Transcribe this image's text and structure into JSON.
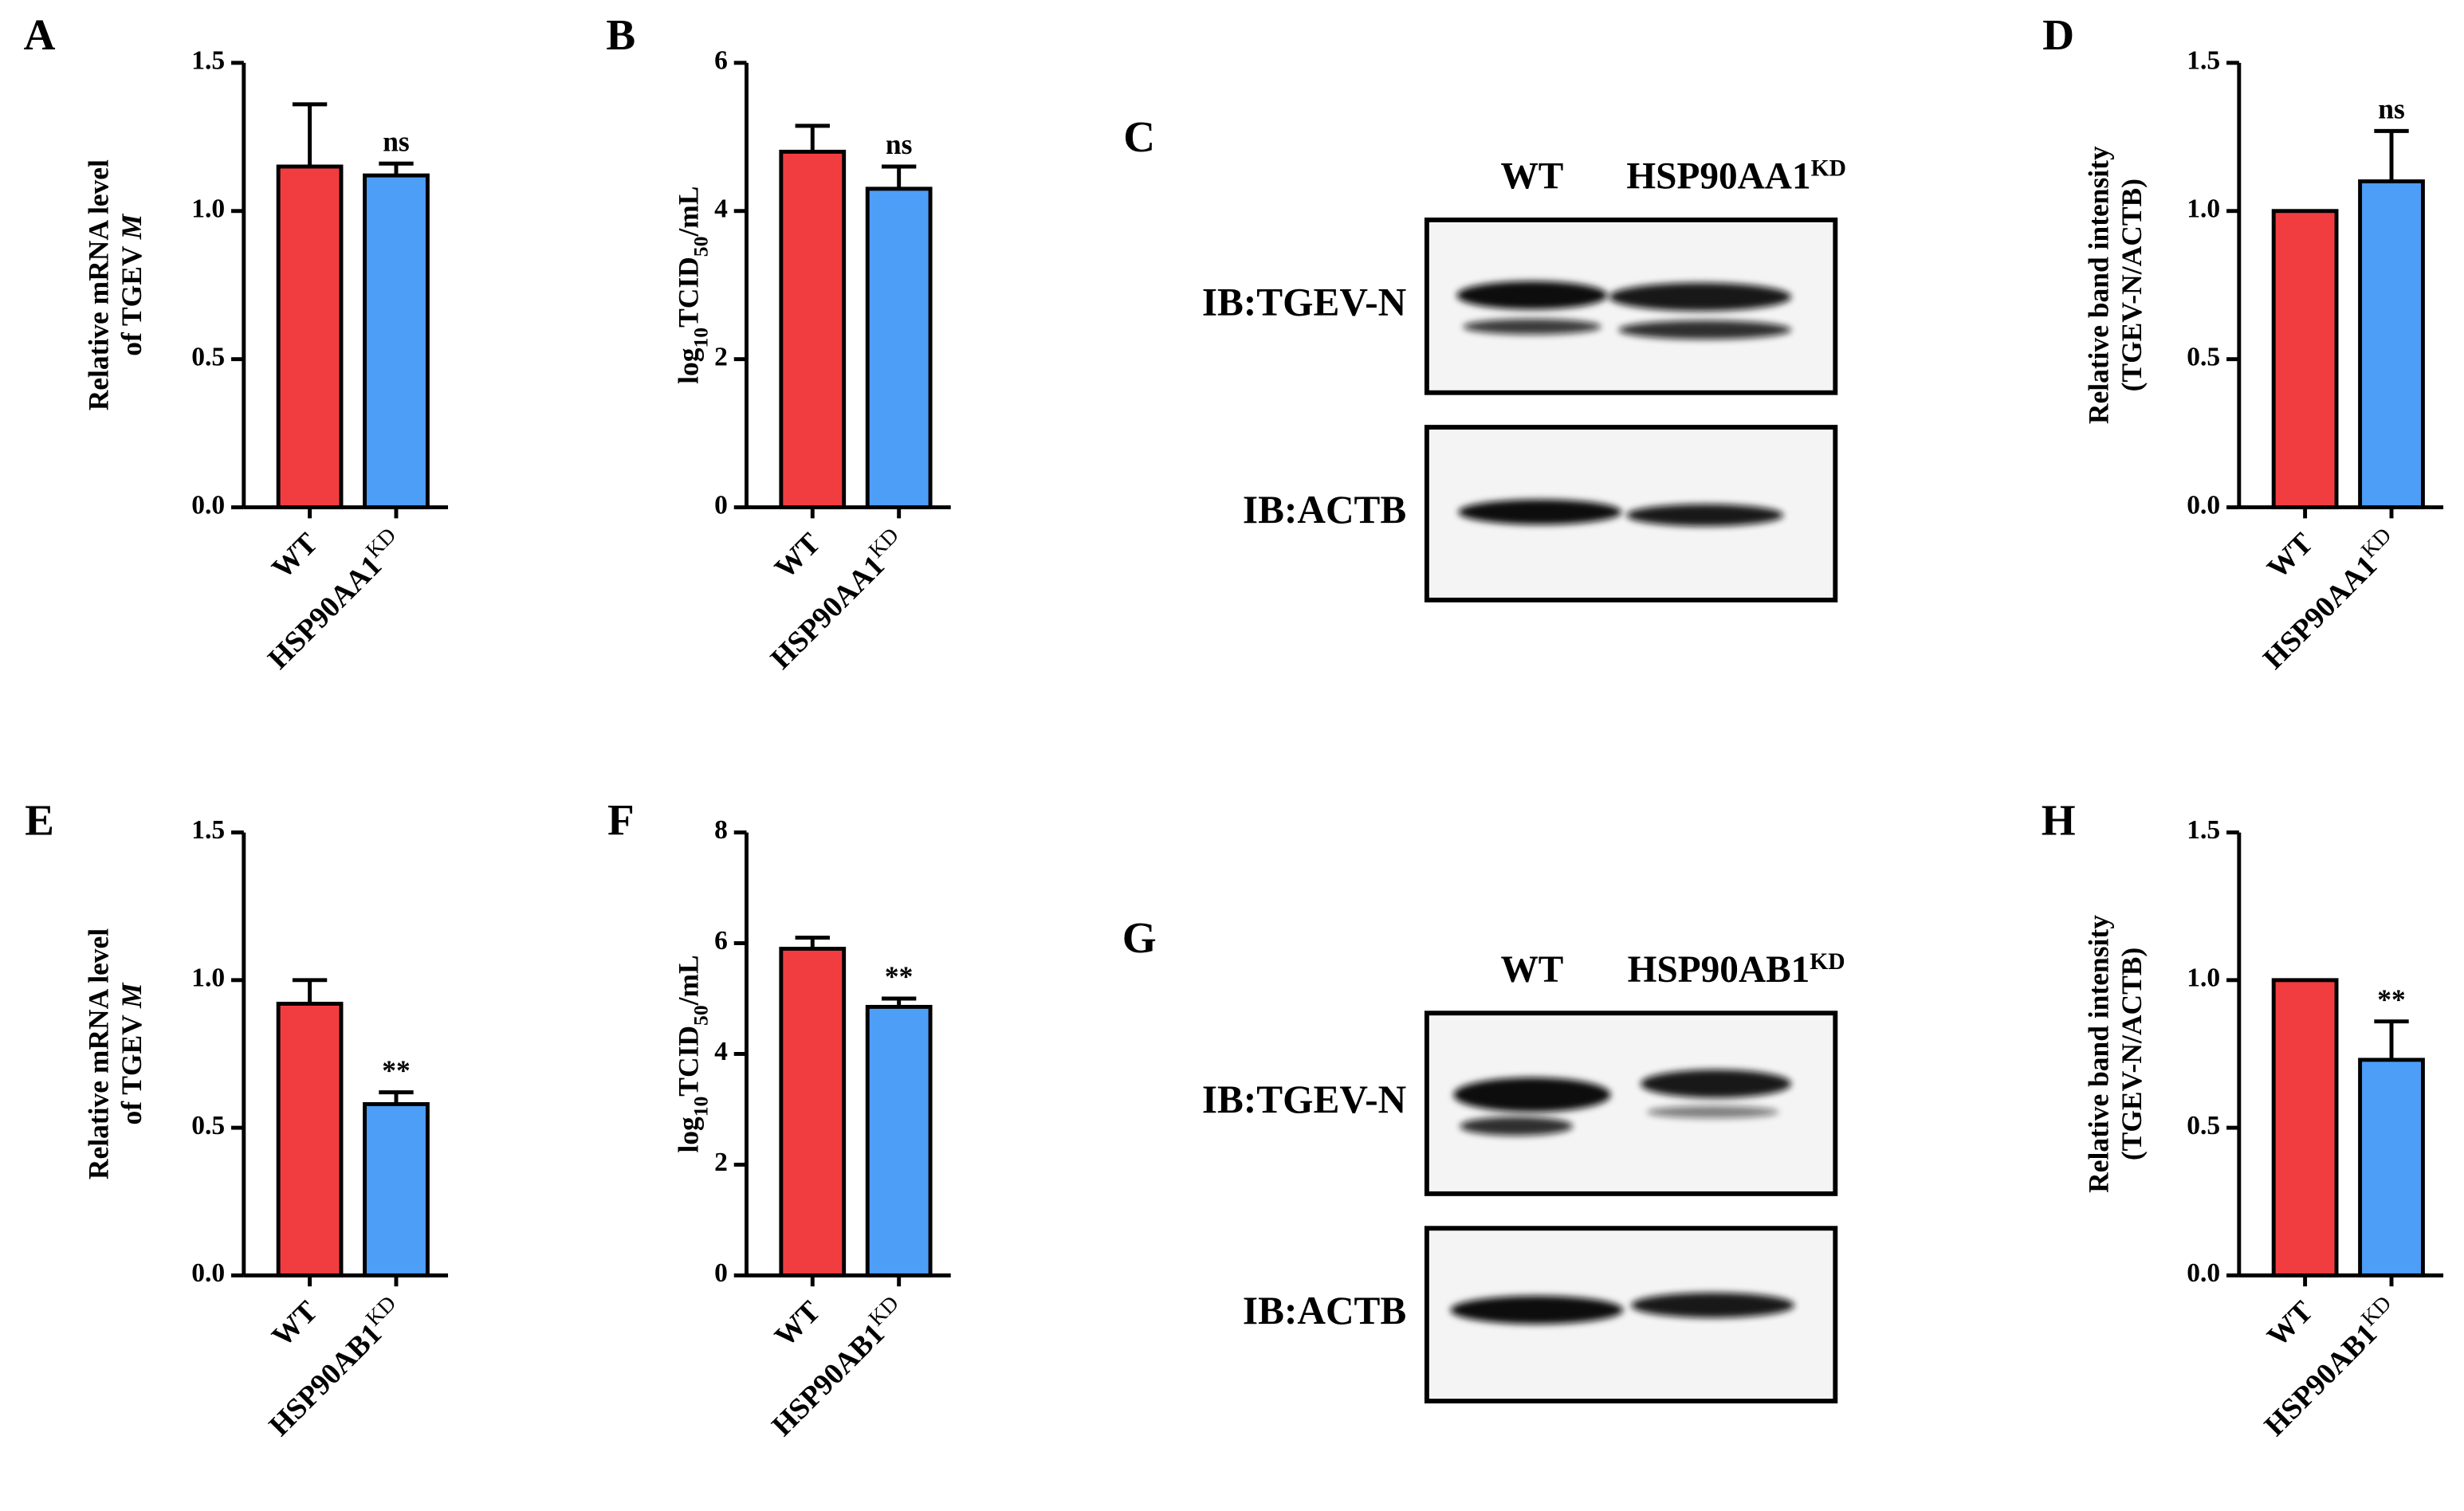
{
  "chart_data": [
    {
      "panel": "A",
      "type": "bar",
      "ylabel": [
        [
          {
            "text": "Relative mRNA level"
          }
        ],
        [
          {
            "text": "of TGEV "
          },
          {
            "text": "M",
            "style": "italic"
          }
        ]
      ],
      "categories": [
        "WT",
        "HSP90AA1"
      ],
      "category_superscript": "KD",
      "values": [
        1.15,
        1.12
      ],
      "errors": [
        0.21,
        0.04
      ],
      "colors": [
        "#f23d40",
        "#4d9ef7"
      ],
      "annotation": "ns",
      "ylim": [
        0,
        1.5
      ],
      "yticks": [
        {
          "value": 0,
          "label": "0.0"
        },
        {
          "value": 0.5,
          "label": "0.5"
        },
        {
          "value": 1,
          "label": "1.0"
        },
        {
          "value": 1.5,
          "label": "1.5"
        }
      ]
    },
    {
      "panel": "B",
      "type": "bar",
      "ylabel": [
        [
          {
            "text": "log"
          },
          {
            "text": "10",
            "style": "sub"
          },
          {
            "text": "TCID"
          },
          {
            "text": "50",
            "style": "sub"
          },
          {
            "text": "/mL"
          }
        ]
      ],
      "categories": [
        "WT",
        "HSP90AA1"
      ],
      "category_superscript": "KD",
      "values": [
        4.8,
        4.3
      ],
      "errors": [
        0.35,
        0.3
      ],
      "colors": [
        "#f23d40",
        "#4d9ef7"
      ],
      "annotation": "ns",
      "ylim": [
        0,
        6
      ],
      "yticks": [
        0,
        2,
        4,
        6
      ]
    },
    {
      "panel": "D",
      "type": "bar",
      "ylabel": [
        [
          {
            "text": "Relative band intensity"
          }
        ],
        [
          {
            "text": "(TGEV-N/ACTB)"
          }
        ]
      ],
      "categories": [
        "WT",
        "HSP90AA1"
      ],
      "category_superscript": "KD",
      "values": [
        1.0,
        1.1
      ],
      "errors": [
        null,
        0.17
      ],
      "colors": [
        "#f23d40",
        "#4d9ef7"
      ],
      "annotation": "ns",
      "ylim": [
        0,
        1.5
      ],
      "yticks": [
        {
          "value": 0,
          "label": "0.0"
        },
        {
          "value": 0.5,
          "label": "0.5"
        },
        {
          "value": 1,
          "label": "1.0"
        },
        {
          "value": 1.5,
          "label": "1.5"
        }
      ]
    },
    {
      "panel": "E",
      "type": "bar",
      "ylabel": [
        [
          {
            "text": "Relative mRNA level"
          }
        ],
        [
          {
            "text": "of TGEV "
          },
          {
            "text": "M",
            "style": "italic"
          }
        ]
      ],
      "categories": [
        "WT",
        "HSP90AB1"
      ],
      "category_superscript": "KD",
      "values": [
        0.92,
        0.58
      ],
      "errors": [
        0.08,
        0.04
      ],
      "colors": [
        "#f23d40",
        "#4d9ef7"
      ],
      "annotation": "**",
      "ylim": [
        0,
        1.5
      ],
      "yticks": [
        {
          "value": 0,
          "label": "0.0"
        },
        {
          "value": 0.5,
          "label": "0.5"
        },
        {
          "value": 1,
          "label": "1.0"
        },
        {
          "value": 1.5,
          "label": "1.5"
        }
      ]
    },
    {
      "panel": "F",
      "type": "bar",
      "ylabel": [
        [
          {
            "text": "log"
          },
          {
            "text": "10",
            "style": "sub"
          },
          {
            "text": "TCID"
          },
          {
            "text": "50",
            "style": "sub"
          },
          {
            "text": "/mL"
          }
        ]
      ],
      "categories": [
        "WT",
        "HSP90AB1"
      ],
      "category_superscript": "KD",
      "values": [
        5.9,
        4.85
      ],
      "errors": [
        0.2,
        0.15
      ],
      "colors": [
        "#f23d40",
        "#4d9ef7"
      ],
      "annotation": "**",
      "ylim": [
        0,
        8
      ],
      "yticks": [
        0,
        2,
        4,
        6,
        8
      ]
    },
    {
      "panel": "H",
      "type": "bar",
      "ylabel": [
        [
          {
            "text": "Relative band intensity"
          }
        ],
        [
          {
            "text": "(TGEV-N/ACTB)"
          }
        ]
      ],
      "categories": [
        "WT",
        "HSP90AB1"
      ],
      "category_superscript": "KD",
      "values": [
        1.0,
        0.73
      ],
      "errors": [
        null,
        0.13
      ],
      "colors": [
        "#f23d40",
        "#4d9ef7"
      ],
      "annotation": "**",
      "ylim": [
        0,
        1.5
      ],
      "yticks": [
        {
          "value": 0,
          "label": "0.0"
        },
        {
          "value": 0.5,
          "label": "0.5"
        },
        {
          "value": 1,
          "label": "1.0"
        },
        {
          "value": 1.5,
          "label": "1.5"
        }
      ]
    }
  ],
  "blots": [
    {
      "panel": "C",
      "lanes": [
        "WT",
        "HSP90AA1"
      ],
      "lane_superscript": "KD",
      "rows": [
        "IB:TGEV-N",
        "IB:ACTB"
      ]
    },
    {
      "panel": "G",
      "lanes": [
        "WT",
        "HSP90AB1"
      ],
      "lane_superscript": "KD",
      "rows": [
        "IB:TGEV-N",
        "IB:ACTB"
      ]
    }
  ]
}
